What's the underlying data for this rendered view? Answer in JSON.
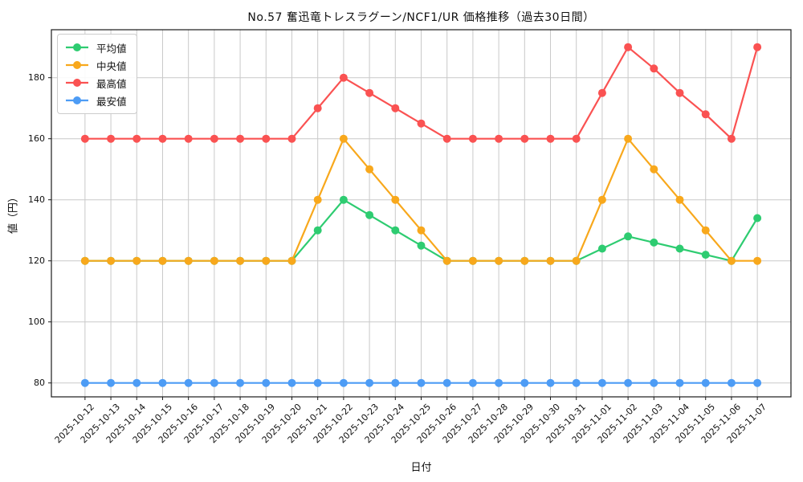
{
  "title": "No.57 奮迅竜トレスラグーン/NCF1/UR 価格推移（過去30日間）",
  "chart_data": {
    "type": "line",
    "title": "No.57 奮迅竜トレスラグーン/NCF1/UR 価格推移（過去30日間）",
    "xlabel": "日付",
    "ylabel": "値（円）",
    "grid": true,
    "grid_color": "#c9c9c9",
    "background_color": "#ffffff",
    "legend_position": "upper left",
    "yticks": [
      80,
      100,
      120,
      140,
      160,
      180
    ],
    "ylim": [
      75,
      196
    ],
    "x": [
      "2025-10-12",
      "2025-10-13",
      "2025-10-14",
      "2025-10-15",
      "2025-10-16",
      "2025-10-17",
      "2025-10-18",
      "2025-10-19",
      "2025-10-20",
      "2025-10-21",
      "2025-10-22",
      "2025-10-23",
      "2025-10-24",
      "2025-10-25",
      "2025-10-26",
      "2025-10-27",
      "2025-10-28",
      "2025-10-29",
      "2025-10-30",
      "2025-10-31",
      "2025-11-01",
      "2025-11-02",
      "2025-11-03",
      "2025-11-04",
      "2025-11-05",
      "2025-11-06",
      "2025-11-07"
    ],
    "series": [
      {
        "key": "avg",
        "name": "平均値",
        "color": "#2ECC71",
        "marker": "circle",
        "values": [
          120,
          120,
          120,
          120,
          120,
          120,
          120,
          120,
          120,
          130,
          140,
          135,
          130,
          125,
          120,
          120,
          120,
          120,
          120,
          120,
          124,
          128,
          126,
          124,
          122,
          120,
          134
        ]
      },
      {
        "key": "median",
        "name": "中央値",
        "color": "#F8A81C",
        "marker": "circle",
        "values": [
          120,
          120,
          120,
          120,
          120,
          120,
          120,
          120,
          120,
          140,
          160,
          150,
          140,
          130,
          120,
          120,
          120,
          120,
          120,
          120,
          140,
          160,
          150,
          140,
          130,
          120,
          120
        ]
      },
      {
        "key": "max",
        "name": "最高値",
        "color": "#FA5252",
        "marker": "circle",
        "values": [
          160,
          160,
          160,
          160,
          160,
          160,
          160,
          160,
          160,
          170,
          180,
          175,
          170,
          165,
          160,
          160,
          160,
          160,
          160,
          160,
          175,
          190,
          183,
          175,
          168,
          160,
          190
        ]
      },
      {
        "key": "min",
        "name": "最安値",
        "color": "#4D9CF5",
        "marker": "circle",
        "values": [
          80,
          80,
          80,
          80,
          80,
          80,
          80,
          80,
          80,
          80,
          80,
          80,
          80,
          80,
          80,
          80,
          80,
          80,
          80,
          80,
          80,
          80,
          80,
          80,
          80,
          80,
          80
        ]
      }
    ]
  }
}
